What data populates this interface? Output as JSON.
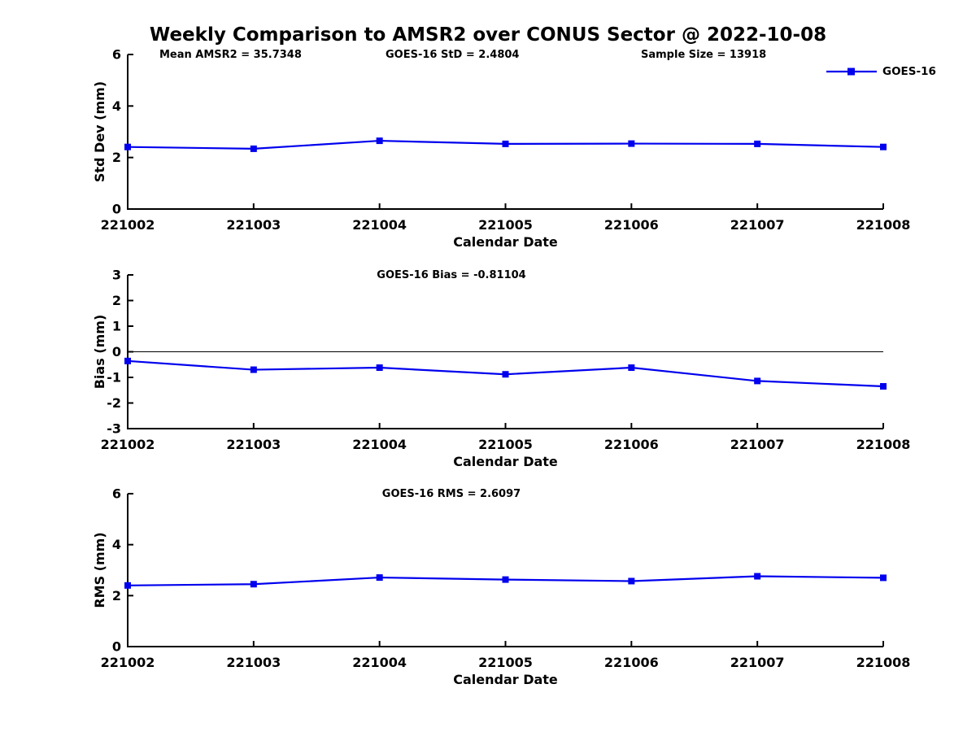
{
  "figure": {
    "title": "Weekly Comparison to AMSR2 over CONUS Sector @ 2022-10-08"
  },
  "legend": {
    "label": "GOES-16"
  },
  "colors": {
    "line": "#0000ee",
    "axis": "#000000",
    "zero_line": "#000000",
    "background": "#ffffff"
  },
  "chart_data": [
    {
      "type": "line",
      "annotations": [
        "Mean AMSR2 = 35.7348",
        "GOES-16 StD = 2.4804",
        "Sample Size = 13918"
      ],
      "title": "",
      "categories": [
        "221002",
        "221003",
        "221004",
        "221005",
        "221006",
        "221007",
        "221008"
      ],
      "series": [
        {
          "name": "GOES-16",
          "values": [
            2.41,
            2.34,
            2.65,
            2.53,
            2.54,
            2.53,
            2.41
          ]
        }
      ],
      "xlabel": "Calendar Date",
      "ylabel": "Std Dev (mm)",
      "ylim": [
        0,
        6
      ],
      "yticks": [
        0,
        2,
        4,
        6
      ],
      "zero_line": false,
      "grid": false,
      "legend_position": "northeast-outside",
      "marker": "square"
    },
    {
      "type": "line",
      "annotations": [],
      "title": "GOES-16 Bias  = -0.81104",
      "categories": [
        "221002",
        "221003",
        "221004",
        "221005",
        "221006",
        "221007",
        "221008"
      ],
      "series": [
        {
          "name": "GOES-16",
          "values": [
            -0.36,
            -0.7,
            -0.62,
            -0.88,
            -0.62,
            -1.14,
            -1.35
          ]
        }
      ],
      "xlabel": "Calendar Date",
      "ylabel": "Bias (mm)",
      "ylim": [
        -3,
        3
      ],
      "yticks": [
        -3,
        -2,
        -1,
        0,
        1,
        2,
        3
      ],
      "zero_line": true,
      "grid": false,
      "marker": "square"
    },
    {
      "type": "line",
      "annotations": [],
      "title": "GOES-16 RMS = 2.6097",
      "categories": [
        "221002",
        "221003",
        "221004",
        "221005",
        "221006",
        "221007",
        "221008"
      ],
      "series": [
        {
          "name": "GOES-16",
          "values": [
            2.4,
            2.45,
            2.71,
            2.63,
            2.57,
            2.76,
            2.7
          ]
        }
      ],
      "xlabel": "Calendar Date",
      "ylabel": "RMS (mm)",
      "ylim": [
        0,
        6
      ],
      "yticks": [
        0,
        2,
        4,
        6
      ],
      "zero_line": false,
      "grid": false,
      "marker": "square"
    }
  ]
}
